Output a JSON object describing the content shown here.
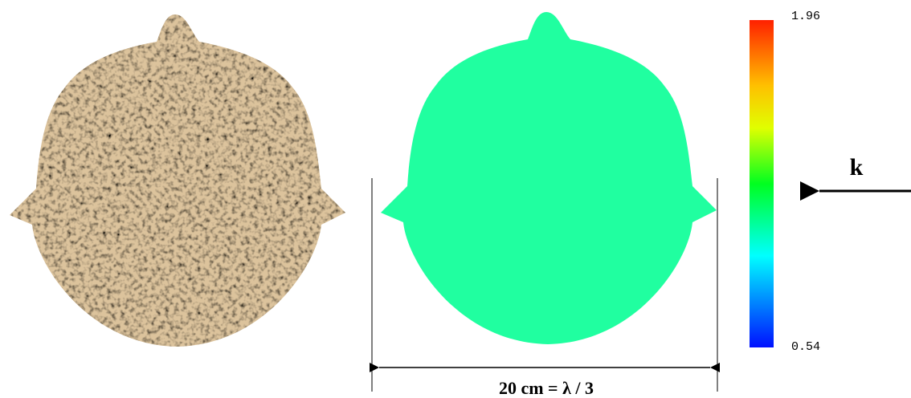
{
  "colorbar": {
    "max": "1.96",
    "min": "0.54"
  },
  "dimension": {
    "label": "20 cm = λ / 3"
  },
  "wave": {
    "label": "k"
  }
}
